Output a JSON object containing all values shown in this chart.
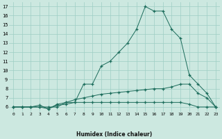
{
  "xlabel": "Humidex (Indice chaleur)",
  "x": [
    0,
    1,
    2,
    3,
    4,
    5,
    6,
    7,
    8,
    9,
    10,
    11,
    12,
    13,
    14,
    15,
    16,
    17,
    18,
    19,
    20,
    21,
    22,
    23
  ],
  "line1": [
    6,
    6,
    6,
    6.2,
    5.8,
    6.3,
    6.5,
    6.5,
    8.5,
    8.5,
    10.5,
    11,
    12,
    13,
    14.5,
    17,
    16.5,
    16.5,
    14.5,
    13.5,
    9.5,
    8.5,
    7.5,
    6
  ],
  "line2": [
    6,
    6,
    6,
    6,
    5.8,
    6.2,
    6.3,
    6.5,
    6.5,
    6.5,
    6.5,
    6.5,
    6.5,
    6.5,
    6.5,
    6.5,
    6.5,
    6.5,
    6.5,
    6.5,
    6.3,
    6,
    6,
    6
  ],
  "line3": [
    6,
    6,
    6,
    6,
    6,
    6,
    6.5,
    6.8,
    7.0,
    7.2,
    7.4,
    7.5,
    7.6,
    7.7,
    7.8,
    7.9,
    8.0,
    8.0,
    8.2,
    8.5,
    8.5,
    7.5,
    7.0,
    6
  ],
  "line_color": "#1a6b5a",
  "bg_color": "#cce8e0",
  "grid_color": "#9ecec4",
  "ylim": [
    5.5,
    17.5
  ],
  "xlim": [
    -0.5,
    23.5
  ],
  "yticks": [
    6,
    7,
    8,
    9,
    10,
    11,
    12,
    13,
    14,
    15,
    16,
    17
  ],
  "xticks": [
    0,
    1,
    2,
    3,
    4,
    5,
    6,
    7,
    8,
    9,
    10,
    11,
    12,
    13,
    14,
    15,
    16,
    17,
    18,
    19,
    20,
    21,
    22,
    23
  ]
}
